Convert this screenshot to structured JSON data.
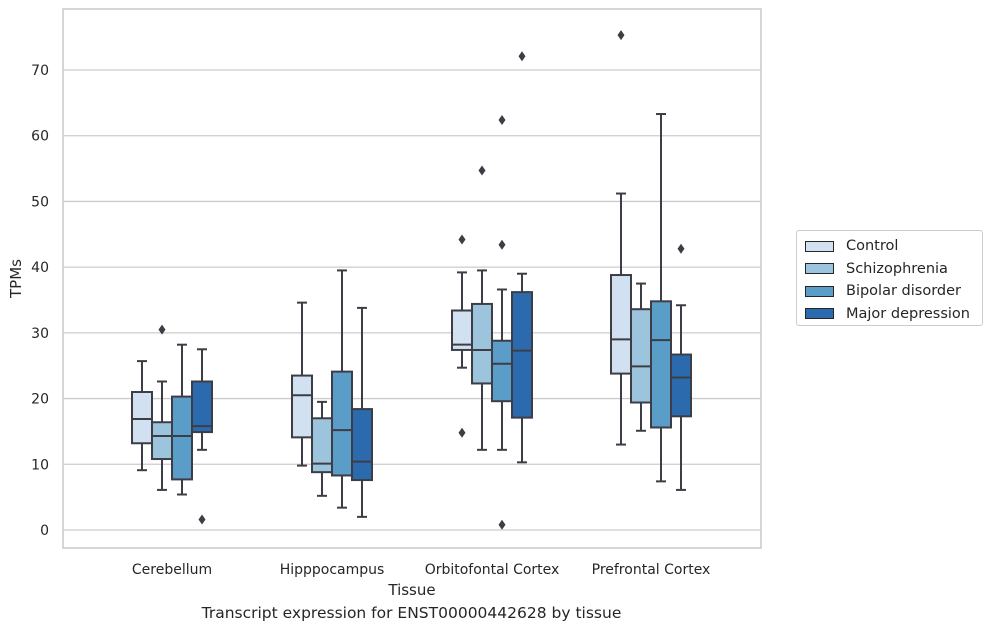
{
  "chart_data": {
    "type": "box",
    "caption": "Transcript expression for ENST00000442628 by tissue",
    "xlabel": "Tissue",
    "ylabel": "TPMs",
    "ylim": [
      -2.5,
      79
    ],
    "yticks": [
      0,
      10,
      20,
      30,
      40,
      50,
      60,
      70
    ],
    "grid": "horizontal",
    "legend_position": "right",
    "categories": [
      "Cerebellum",
      "Hipppocampus",
      "Orbitofontal Cortex",
      "Prefrontal Cortex"
    ],
    "series": [
      {
        "name": "Control",
        "color": "#d2e1f1",
        "boxes": [
          {
            "whislo": 9.1,
            "q1": 13.2,
            "med": 16.9,
            "q3": 21.0,
            "whishi": 25.7,
            "fliers": []
          },
          {
            "whislo": 9.8,
            "q1": 14.1,
            "med": 20.5,
            "q3": 23.5,
            "whishi": 34.6,
            "fliers": []
          },
          {
            "whislo": 24.7,
            "q1": 27.4,
            "med": 28.2,
            "q3": 33.4,
            "whishi": 39.2,
            "fliers": [
              44.2,
              14.8
            ]
          },
          {
            "whislo": 13.0,
            "q1": 23.8,
            "med": 29.0,
            "q3": 38.8,
            "whishi": 51.2,
            "fliers": [
              75.3
            ]
          }
        ]
      },
      {
        "name": "Schizophrenia",
        "color": "#9cc4dd",
        "boxes": [
          {
            "whislo": 6.1,
            "q1": 10.8,
            "med": 14.3,
            "q3": 16.4,
            "whishi": 22.6,
            "fliers": [
              30.5
            ]
          },
          {
            "whislo": 5.2,
            "q1": 8.8,
            "med": 10.1,
            "q3": 17.0,
            "whishi": 19.5,
            "fliers": []
          },
          {
            "whislo": 12.2,
            "q1": 22.3,
            "med": 27.4,
            "q3": 34.4,
            "whishi": 39.5,
            "fliers": [
              54.7
            ]
          },
          {
            "whislo": 15.1,
            "q1": 19.4,
            "med": 24.9,
            "q3": 33.6,
            "whishi": 37.5,
            "fliers": []
          }
        ]
      },
      {
        "name": "Bipolar disorder",
        "color": "#5b9dc9",
        "boxes": [
          {
            "whislo": 5.4,
            "q1": 7.7,
            "med": 14.3,
            "q3": 20.3,
            "whishi": 28.2,
            "fliers": []
          },
          {
            "whislo": 3.4,
            "q1": 8.3,
            "med": 15.2,
            "q3": 24.1,
            "whishi": 39.5,
            "fliers": []
          },
          {
            "whislo": 12.2,
            "q1": 19.6,
            "med": 25.3,
            "q3": 28.8,
            "whishi": 36.6,
            "fliers": [
              62.4,
              43.4,
              0.8
            ]
          },
          {
            "whislo": 7.4,
            "q1": 15.6,
            "med": 28.9,
            "q3": 34.8,
            "whishi": 63.3,
            "fliers": []
          }
        ]
      },
      {
        "name": "Major depression",
        "color": "#2b6aad",
        "boxes": [
          {
            "whislo": 12.2,
            "q1": 14.9,
            "med": 15.8,
            "q3": 22.6,
            "whishi": 27.5,
            "fliers": [
              1.6
            ]
          },
          {
            "whislo": 2.0,
            "q1": 7.6,
            "med": 10.4,
            "q3": 18.4,
            "whishi": 33.8,
            "fliers": []
          },
          {
            "whislo": 10.3,
            "q1": 17.1,
            "med": 27.3,
            "q3": 36.2,
            "whishi": 39.0,
            "fliers": [
              72.1
            ]
          },
          {
            "whislo": 6.1,
            "q1": 17.3,
            "med": 23.2,
            "q3": 26.7,
            "whishi": 34.2,
            "fliers": [
              42.8
            ]
          }
        ]
      }
    ]
  }
}
